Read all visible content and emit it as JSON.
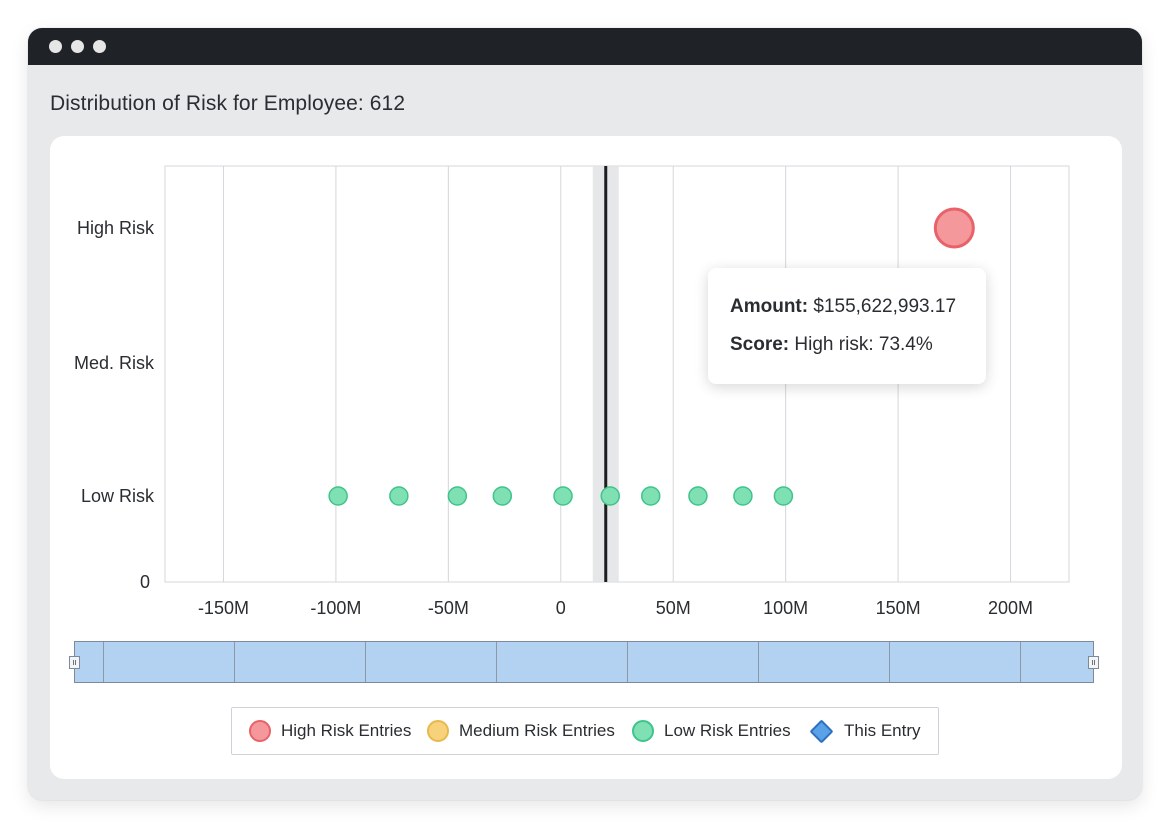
{
  "page": {
    "title": "Distribution of Risk for Employee: 612"
  },
  "colors": {
    "high": "#f4989c",
    "high_border": "#e8626a",
    "medium": "#f8d27a",
    "medium_border": "#e8b84b",
    "low": "#7fe0b4",
    "low_border": "#3fc48a",
    "entry": "#5aa2e8",
    "entry_border": "#2e6fc0",
    "scrollbar_fill": "#b3d1f0"
  },
  "tooltip": {
    "amount_label": "Amount:",
    "amount_value": "$155,622,993.17",
    "score_label": "Score:",
    "score_value": "High risk: 73.4%"
  },
  "legend": {
    "high": "High Risk Entries",
    "medium": "Medium Risk Entries",
    "low": "Low Risk Entries",
    "entry": "This Entry"
  },
  "chart_data": {
    "type": "scatter",
    "title": "Distribution of Risk for Employee: 612",
    "xlabel": "",
    "ylabel": "",
    "x_unit": "USD",
    "xlim": [
      -176000000,
      226000000
    ],
    "x_ticks": [
      -150000000,
      -100000000,
      -50000000,
      0,
      50000000,
      100000000,
      150000000,
      200000000
    ],
    "x_tick_labels": [
      "-150M",
      "-100M",
      "-50M",
      "0",
      "50M",
      "100M",
      "150M",
      "200M"
    ],
    "y_categories": [
      "0",
      "Low Risk",
      "Med. Risk",
      "High Risk"
    ],
    "grid": true,
    "legend_position": "bottom",
    "this_entry_x": 20000000,
    "series": [
      {
        "name": "High Risk Entries",
        "points": [
          {
            "x": 175000000,
            "y": "High Risk"
          }
        ]
      },
      {
        "name": "Medium Risk Entries",
        "points": []
      },
      {
        "name": "Low Risk Entries",
        "points": [
          {
            "x": -99000000,
            "y": "Low Risk"
          },
          {
            "x": -72000000,
            "y": "Low Risk"
          },
          {
            "x": -46000000,
            "y": "Low Risk"
          },
          {
            "x": -26000000,
            "y": "Low Risk"
          },
          {
            "x": 1000000,
            "y": "Low Risk"
          },
          {
            "x": 22000000,
            "y": "Low Risk"
          },
          {
            "x": 40000000,
            "y": "Low Risk"
          },
          {
            "x": 61000000,
            "y": "Low Risk"
          },
          {
            "x": 81000000,
            "y": "Low Risk"
          },
          {
            "x": 99000000,
            "y": "Low Risk"
          }
        ]
      }
    ]
  }
}
